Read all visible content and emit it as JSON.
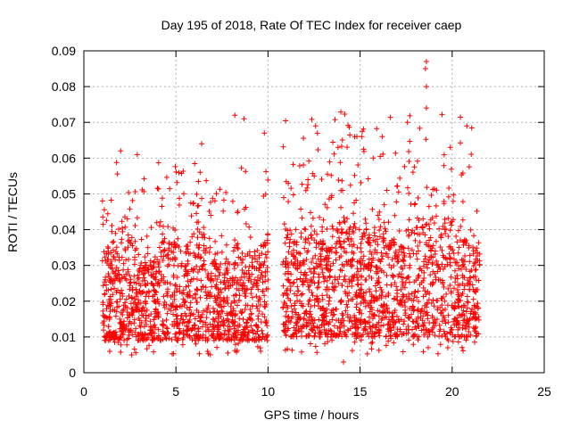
{
  "chart_data": {
    "type": "scatter",
    "title": "Day 195 of 2018, Rate Of TEC Index for receiver caep",
    "xlabel": "GPS time / hours",
    "ylabel": "ROTI / TECUs",
    "xlim": [
      0,
      25
    ],
    "ylim": [
      0,
      0.09
    ],
    "xticks": [
      0,
      5,
      10,
      15,
      20,
      25
    ],
    "xtick_labels": [
      "0",
      "5",
      "10",
      "15",
      "20",
      "25"
    ],
    "yticks": [
      0,
      0.01,
      0.02,
      0.03,
      0.04,
      0.05,
      0.06,
      0.07,
      0.08,
      0.09
    ],
    "ytick_labels": [
      "0",
      "0.01",
      "0.02",
      "0.03",
      "0.04",
      "0.05",
      "0.06",
      "0.07",
      "0.08",
      "0.09"
    ],
    "grid": true,
    "marker": "+",
    "color": "#ff0000",
    "series": [
      {
        "name": "ROTI",
        "segments": [
          {
            "x_start": 1.0,
            "x_end": 10.0,
            "typical_low": 0.009,
            "typical_high": 0.03,
            "peak_max": 0.072
          },
          {
            "x_start": 10.8,
            "x_end": 21.5,
            "typical_low": 0.01,
            "typical_high": 0.035,
            "peak_max": 0.087
          }
        ],
        "notable_points": [
          {
            "x": 8.2,
            "y": 0.072
          },
          {
            "x": 8.7,
            "y": 0.071
          },
          {
            "x": 9.8,
            "y": 0.067
          },
          {
            "x": 18.6,
            "y": 0.087
          },
          {
            "x": 18.55,
            "y": 0.085
          },
          {
            "x": 18.6,
            "y": 0.08
          },
          {
            "x": 18.6,
            "y": 0.074
          },
          {
            "x": 20.8,
            "y": 0.069
          },
          {
            "x": 16.2,
            "y": 0.066
          },
          {
            "x": 15.1,
            "y": 0.066
          },
          {
            "x": 6.4,
            "y": 0.064
          },
          {
            "x": 2.0,
            "y": 0.062
          },
          {
            "x": 2.9,
            "y": 0.061
          },
          {
            "x": 13.8,
            "y": 0.063
          },
          {
            "x": 19.9,
            "y": 0.063
          },
          {
            "x": 2.6,
            "y": 0.005
          },
          {
            "x": 14.1,
            "y": 0.003
          },
          {
            "x": 9.6,
            "y": 0.006
          },
          {
            "x": 18.7,
            "y": 0.007
          },
          {
            "x": 19.8,
            "y": 0.009
          }
        ]
      }
    ]
  }
}
